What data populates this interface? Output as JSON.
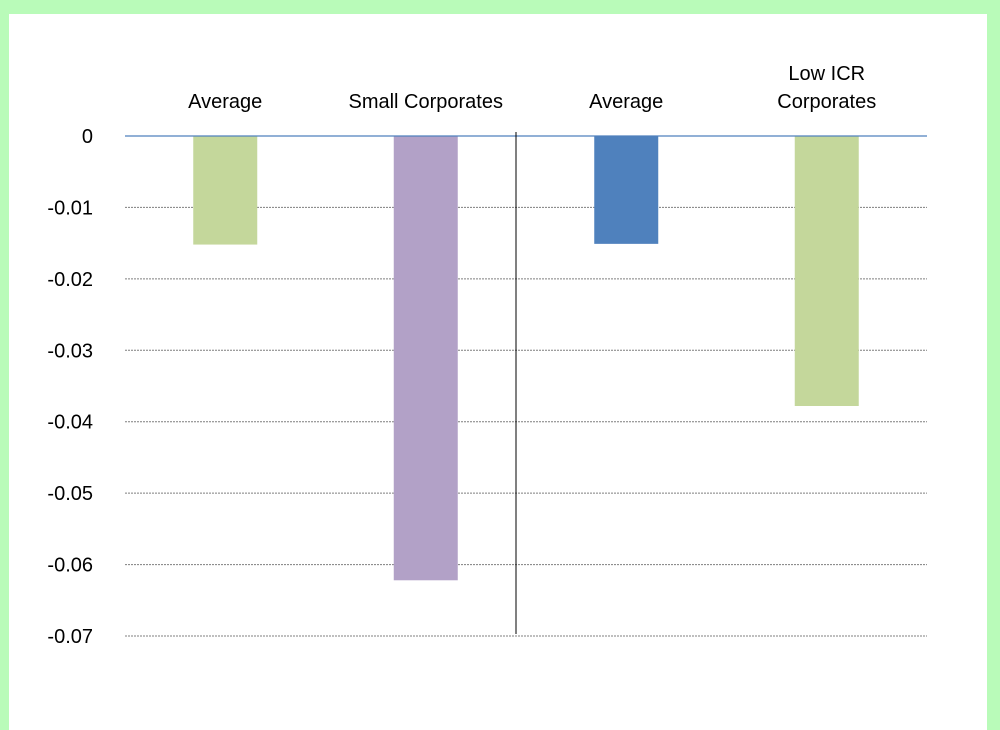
{
  "chart_data": {
    "type": "bar",
    "categories": [
      "Average",
      "Small Corporates",
      "Average",
      "Low ICR Corporates"
    ],
    "category_label_lines": [
      [
        "Average"
      ],
      [
        "Small Corporates"
      ],
      [
        "Average"
      ],
      [
        "Low ICR",
        "Corporates"
      ]
    ],
    "values": [
      -0.0152,
      -0.0622,
      -0.0151,
      -0.0378
    ],
    "bar_colors": [
      "#c4d79b",
      "#b2a1c7",
      "#4f81bd",
      "#c4d79b"
    ],
    "yticks": [
      "0",
      "-0.01",
      "-0.02",
      "-0.03",
      "-0.04",
      "-0.05",
      "-0.06",
      "-0.07"
    ],
    "ytick_values": [
      0,
      -0.01,
      -0.02,
      -0.03,
      -0.04,
      -0.05,
      -0.06,
      -0.07
    ],
    "ylim": [
      -0.07,
      0
    ],
    "grid": true,
    "zero_line_color": "#4f81bd",
    "divider_after_category": 2
  }
}
